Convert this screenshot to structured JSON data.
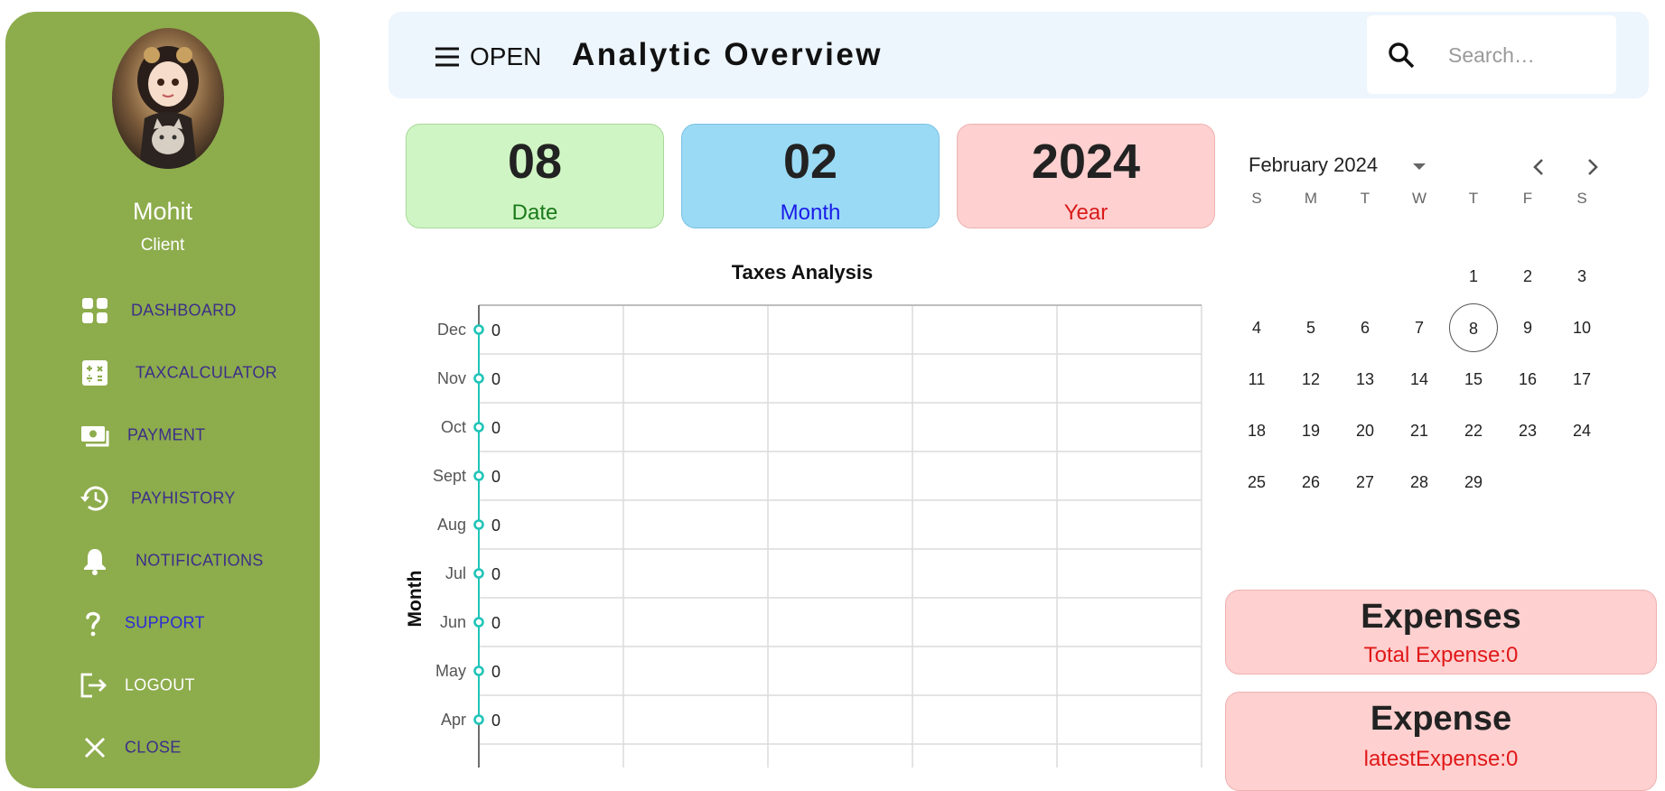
{
  "sidebar": {
    "user": {
      "name": "Mohit",
      "role": "Client"
    },
    "items": [
      {
        "label": "DASHBOARD",
        "icon": "dashboard-icon"
      },
      {
        "label": "TAXCALCULATOR",
        "icon": "calculator-icon"
      },
      {
        "label": "PAYMENT",
        "icon": "payment-icon"
      },
      {
        "label": "PAYHISTORY",
        "icon": "history-icon"
      },
      {
        "label": "NOTIFICATIONS",
        "icon": "bell-icon"
      },
      {
        "label": "SUPPORT",
        "icon": "help-icon"
      },
      {
        "label": "LOGOUT",
        "icon": "logout-icon"
      },
      {
        "label": "CLOSE",
        "icon": "close-icon"
      }
    ]
  },
  "header": {
    "menu_label": "OPEN",
    "title": "Analytic Overview",
    "search_placeholder": "Search…"
  },
  "cards": {
    "date": {
      "value": "08",
      "label": "Date"
    },
    "month": {
      "value": "02",
      "label": "Month"
    },
    "year": {
      "value": "2024",
      "label": "Year"
    }
  },
  "calendar": {
    "title": "February 2024",
    "weekdays": [
      "S",
      "M",
      "T",
      "W",
      "T",
      "F",
      "S"
    ],
    "first_weekday_index": 4,
    "days_in_month": 29,
    "selected_day": 8
  },
  "summary": {
    "expenses_title": "Expenses",
    "expenses_sub": "Total Expense:0",
    "expense_title": "Expense",
    "expense_sub": "latestExpense:0"
  },
  "colors": {
    "sidebar": "#8dac4c",
    "header_bg": "#edf5fd",
    "chart_point": "#20c4b8"
  },
  "chart_data": {
    "type": "line",
    "title": "Taxes Analysis",
    "ylabel": "Month",
    "xlabel": "",
    "categories": [
      "Dec",
      "Nov",
      "Oct",
      "Sept",
      "Aug",
      "Jul",
      "Jun",
      "May",
      "Apr"
    ],
    "series": [
      {
        "values": [
          0,
          0,
          0,
          0,
          0,
          0,
          0,
          0,
          0
        ]
      }
    ],
    "data_labels": true,
    "grid": true,
    "orientation": "horizontal"
  }
}
